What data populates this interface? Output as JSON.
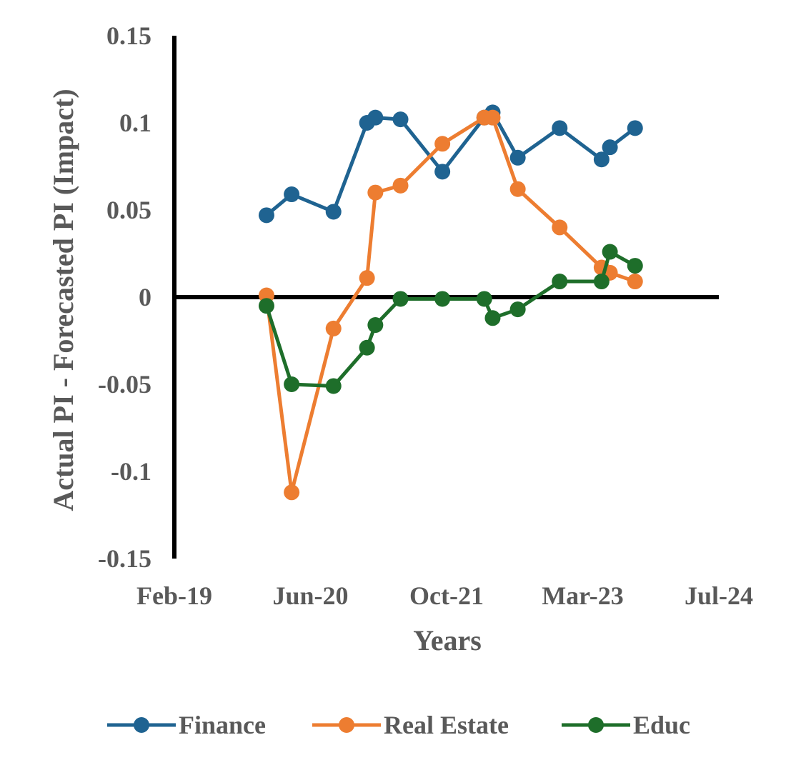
{
  "chart_data": {
    "type": "line",
    "title": "",
    "xlabel": "Years",
    "ylabel": "Actual PI - Forecasted PI (Impact)",
    "x_axis": {
      "type": "date",
      "min": "2019-02",
      "max": "2024-07",
      "ticks": [
        "Feb-19",
        "Jun-20",
        "Oct-21",
        "Mar-23",
        "Jul-24"
      ]
    },
    "ylim": [
      -0.15,
      0.15
    ],
    "yticks": [
      "0.15",
      "0.1",
      "0.05",
      "0",
      "-0.05",
      "-0.1",
      "-0.15"
    ],
    "grid": false,
    "legend": "bottom",
    "x": [
      "2020-01",
      "2020-04",
      "2020-09",
      "2021-01",
      "2021-02",
      "2021-05",
      "2021-10",
      "2022-03",
      "2022-04",
      "2022-07",
      "2022-12",
      "2023-05",
      "2023-06",
      "2023-09"
    ],
    "series": [
      {
        "name": "Finance",
        "color": "#1f6391",
        "values": [
          0.047,
          0.059,
          0.049,
          0.1,
          0.103,
          0.102,
          0.072,
          0.103,
          0.106,
          0.08,
          0.097,
          0.079,
          0.086,
          0.097
        ]
      },
      {
        "name": "Real Estate",
        "color": "#ed7d31",
        "values": [
          0.001,
          -0.112,
          -0.018,
          0.011,
          0.06,
          0.064,
          0.088,
          0.103,
          0.103,
          0.062,
          0.04,
          0.017,
          0.014,
          0.009
        ]
      },
      {
        "name": "Educ",
        "color": "#1e6e2a",
        "values": [
          -0.005,
          -0.05,
          -0.051,
          -0.029,
          -0.016,
          -0.001,
          -0.001,
          -0.001,
          -0.012,
          -0.007,
          0.009,
          0.009,
          0.026,
          0.018
        ]
      }
    ]
  }
}
